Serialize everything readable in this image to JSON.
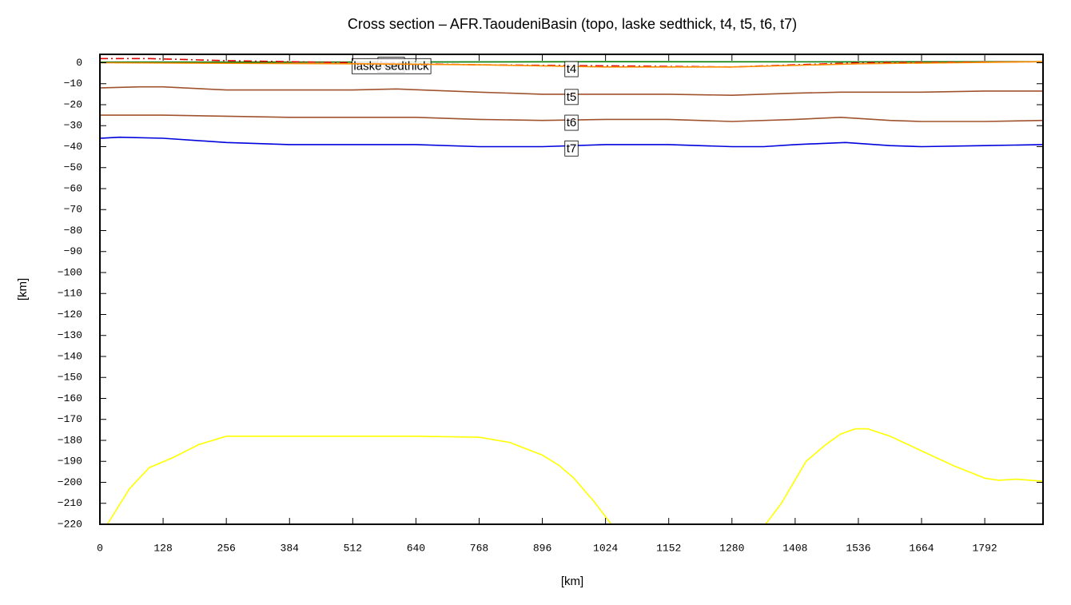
{
  "chart_data": {
    "type": "line",
    "title": "Cross section – AFR.TaoudeniBasin (topo, laske sedthick, t4, t5, t6, t7)",
    "xlabel": "[km]",
    "ylabel": "[km]",
    "xlim": [
      0,
      1910
    ],
    "ylim": [
      -220,
      4
    ],
    "xticks": [
      0,
      128,
      256,
      384,
      512,
      640,
      768,
      896,
      1024,
      1152,
      1280,
      1408,
      1536,
      1664,
      1792
    ],
    "yticks": [
      0,
      {
        "value": -10,
        "label": "−10"
      },
      {
        "value": -20,
        "label": "−20"
      },
      {
        "value": -30,
        "label": "−30"
      },
      {
        "value": -40,
        "label": "−40"
      },
      {
        "value": -50,
        "label": "−50"
      },
      {
        "value": -60,
        "label": "−60"
      },
      {
        "value": -70,
        "label": "−70"
      },
      {
        "value": -80,
        "label": "−80"
      },
      {
        "value": -90,
        "label": "−90"
      },
      {
        "value": -100,
        "label": "−100"
      },
      {
        "value": -110,
        "label": "−110"
      },
      {
        "value": -120,
        "label": "−120"
      },
      {
        "value": -130,
        "label": "−130"
      },
      {
        "value": -140,
        "label": "−140"
      },
      {
        "value": -150,
        "label": "−150"
      },
      {
        "value": -160,
        "label": "−160"
      },
      {
        "value": -170,
        "label": "−170"
      },
      {
        "value": -180,
        "label": "−180"
      },
      {
        "value": -190,
        "label": "−190"
      },
      {
        "value": -200,
        "label": "−200"
      },
      {
        "value": -210,
        "label": "−210"
      },
      {
        "value": -220,
        "label": "−220"
      }
    ],
    "series": [
      {
        "name": "topo",
        "color": "#007a00",
        "dash": "solid",
        "x": [
          0,
          512,
          1024,
          1536,
          1910
        ],
        "values": [
          0.3,
          0.3,
          0.5,
          0.4,
          0.5
        ]
      },
      {
        "name": "laske sedthick",
        "color": "#e00000",
        "dash": "dashdot",
        "x": [
          0,
          100,
          256,
          512,
          768,
          1024,
          1280,
          1408,
          1536,
          1910
        ],
        "values": [
          2,
          2,
          1,
          0,
          -1,
          -1.5,
          -2,
          -1,
          0,
          0.5
        ]
      },
      {
        "name": "t4",
        "color": "#ff8c00",
        "dash": "solid",
        "x": [
          0,
          512,
          768,
          1024,
          1280,
          1536,
          1910
        ],
        "values": [
          0,
          -0.5,
          -1,
          -2,
          -2,
          -0.5,
          0.5
        ]
      },
      {
        "name": "t5",
        "color": "#a0522d",
        "dash": "solid",
        "x": [
          0,
          80,
          128,
          256,
          384,
          512,
          600,
          768,
          896,
          1024,
          1152,
          1280,
          1408,
          1500,
          1664,
          1792,
          1910
        ],
        "values": [
          -12,
          -11.5,
          -11.5,
          -13,
          -13,
          -13,
          -12.5,
          -14,
          -15,
          -15,
          -15,
          -15.5,
          -14.5,
          -14,
          -14,
          -13.5,
          -13.5
        ]
      },
      {
        "name": "t6",
        "color": "#a0522d",
        "dash": "solid",
        "x": [
          0,
          128,
          256,
          384,
          512,
          640,
          768,
          896,
          1024,
          1152,
          1280,
          1408,
          1500,
          1600,
          1664,
          1792,
          1910
        ],
        "values": [
          -25,
          -25,
          -25.5,
          -26,
          -26,
          -26,
          -27,
          -27.5,
          -27,
          -27,
          -28,
          -27,
          -26,
          -27.5,
          -28,
          -28,
          -27.5
        ]
      },
      {
        "name": "t7",
        "color": "#0000dd",
        "dash": "solid",
        "x": [
          0,
          40,
          128,
          256,
          384,
          512,
          640,
          768,
          896,
          1024,
          1152,
          1280,
          1344,
          1408,
          1510,
          1600,
          1664,
          1792,
          1910
        ],
        "values": [
          -36,
          -35.5,
          -36,
          -38,
          -39,
          -39,
          -39,
          -40,
          -40,
          -39,
          -39,
          -40,
          -40,
          -39,
          -38,
          -39.5,
          -40,
          -39.5,
          -39
        ]
      },
      {
        "color": "#ffff00",
        "dash": "solid",
        "x": [
          15,
          60,
          100,
          150,
          200,
          256,
          384,
          512,
          640,
          768,
          830,
          896,
          930,
          960,
          1000,
          1036,
          1200,
          1348,
          1380,
          1430,
          1470,
          1500,
          1530,
          1555,
          1600,
          1664,
          1728,
          1792,
          1820,
          1856,
          1910
        ],
        "values": [
          -220,
          -203,
          -193,
          -188,
          -182,
          -178,
          -178,
          -178,
          -178,
          -178.5,
          -181,
          -187,
          -192,
          -198,
          -209,
          -220,
          null,
          -220,
          -210,
          -190,
          -182,
          -177,
          -174.5,
          -174.5,
          -178,
          -185,
          -192,
          -198,
          -199,
          -198.5,
          -199.5
        ]
      }
    ]
  }
}
